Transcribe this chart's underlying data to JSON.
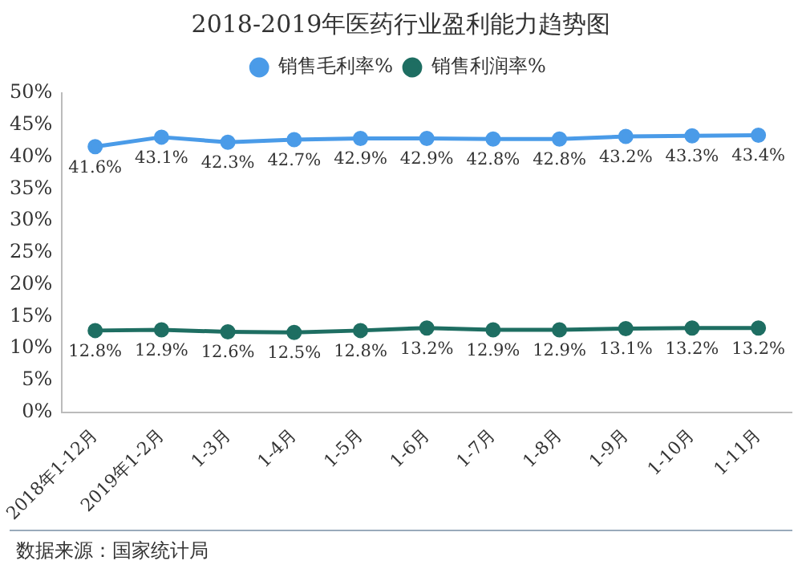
{
  "chart_data": {
    "type": "line",
    "title": "2018-2019年医药行业盈利能力趋势图",
    "categories": [
      "2018年1-12月",
      "2019年1-2月",
      "1-3月",
      "1-4月",
      "1-5月",
      "1-6月",
      "1-7月",
      "1-8月",
      "1-9月",
      "1-10月",
      "1-11月"
    ],
    "series": [
      {
        "name": "销售毛利率%",
        "color": "#4a9be8",
        "values": [
          41.6,
          43.1,
          42.3,
          42.7,
          42.9,
          42.9,
          42.8,
          42.8,
          43.2,
          43.3,
          43.4
        ],
        "value_labels": [
          "41.6%",
          "43.1%",
          "42.3%",
          "42.7%",
          "42.9%",
          "42.9%",
          "42.8%",
          "42.8%",
          "43.2%",
          "43.3%",
          "43.4%"
        ]
      },
      {
        "name": "销售利润率%",
        "color": "#1e6e62",
        "values": [
          12.8,
          12.9,
          12.6,
          12.5,
          12.8,
          13.2,
          12.9,
          12.9,
          13.1,
          13.2,
          13.2
        ],
        "value_labels": [
          "12.8%",
          "12.9%",
          "12.6%",
          "12.5%",
          "12.8%",
          "13.2%",
          "12.9%",
          "12.9%",
          "13.1%",
          "13.2%",
          "13.2%"
        ]
      }
    ],
    "ylim": [
      0,
      50
    ],
    "yticks": [
      {
        "value": 0,
        "label": "0%"
      },
      {
        "value": 5,
        "label": "5%"
      },
      {
        "value": 10,
        "label": "10%"
      },
      {
        "value": 15,
        "label": "15%"
      },
      {
        "value": 20,
        "label": "20%"
      },
      {
        "value": 25,
        "label": "25%"
      },
      {
        "value": 30,
        "label": "30%"
      },
      {
        "value": 35,
        "label": "35%"
      },
      {
        "value": 40,
        "label": "40%"
      },
      {
        "value": 45,
        "label": "45%"
      },
      {
        "value": 50,
        "label": "50%"
      }
    ],
    "grid": false,
    "legend": "top",
    "marker": "circle",
    "line_style": "solid",
    "annotations": [
      "数据来源：国家统计局"
    ]
  }
}
